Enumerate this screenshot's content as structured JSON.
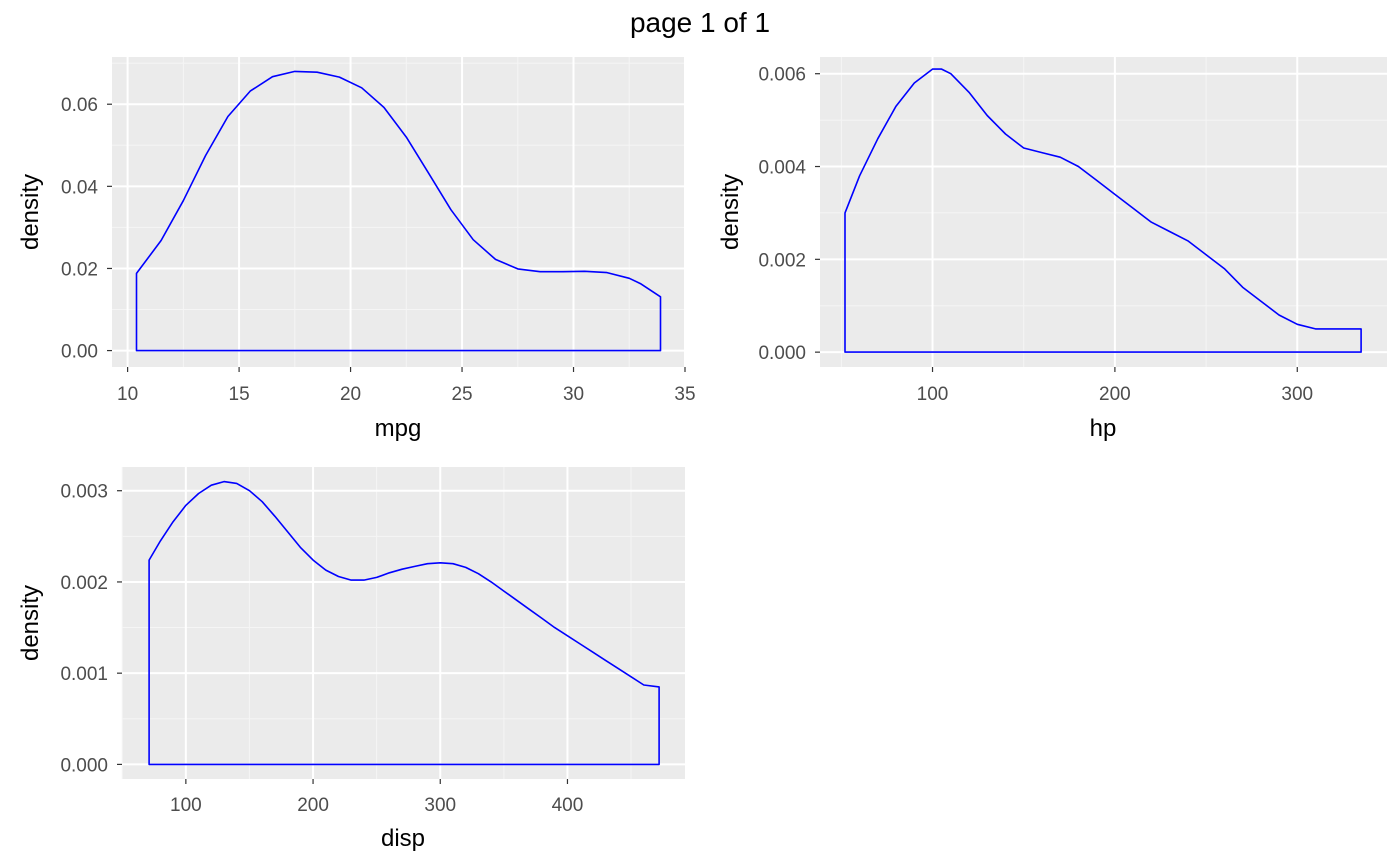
{
  "page": {
    "title": "page 1 of 1"
  },
  "colors": {
    "panel_background": "#ebebeb",
    "grid_major": "#ffffff",
    "grid_minor": "#f5f5f5",
    "tick_text": "#4d4d4d",
    "density_line": "#0000ff"
  },
  "chart_data": [
    {
      "type": "area",
      "title": "",
      "xlabel": "mpg",
      "ylabel": "density",
      "xlim": [
        9.3,
        35.0
      ],
      "ylim": [
        -0.004,
        0.0715
      ],
      "x_ticks": [
        10,
        15,
        20,
        25,
        30,
        35
      ],
      "x_tick_labels": [
        "10",
        "15",
        "20",
        "25",
        "30",
        "35"
      ],
      "y_ticks": [
        0.0,
        0.02,
        0.04,
        0.06
      ],
      "y_tick_labels": [
        "0.00",
        "0.02",
        "0.04",
        "0.06"
      ],
      "grid": true,
      "outline_color": "#0000ff",
      "fill": "none",
      "series": [
        {
          "x": [
            10.4,
            11.5,
            12.5,
            13.5,
            14.5,
            15.5,
            16.5,
            17.5,
            18.5,
            19.5,
            20.5,
            21.5,
            22.5,
            23.5,
            24.5,
            25.5,
            26.5,
            27.5,
            28.5,
            29.5,
            30.5,
            31.5,
            32.5,
            33.0,
            33.9
          ],
          "y": [
            0.0188,
            0.0268,
            0.0365,
            0.0475,
            0.057,
            0.0632,
            0.0667,
            0.068,
            0.0678,
            0.0666,
            0.064,
            0.0592,
            0.052,
            0.0432,
            0.0343,
            0.027,
            0.0222,
            0.0199,
            0.0192,
            0.0192,
            0.0193,
            0.019,
            0.0176,
            0.0163,
            0.0131
          ]
        }
      ]
    },
    {
      "type": "area",
      "title": "",
      "xlabel": "hp",
      "ylabel": "density",
      "xlim": [
        38.3,
        349.2
      ],
      "ylim": [
        -0.00032,
        0.00636
      ],
      "x_ticks": [
        100,
        200,
        300
      ],
      "x_tick_labels": [
        "100",
        "200",
        "300"
      ],
      "y_ticks": [
        0.0,
        0.002,
        0.004,
        0.006
      ],
      "y_tick_labels": [
        "0.000",
        "0.002",
        "0.004",
        "0.006"
      ],
      "grid": true,
      "outline_color": "#0000ff",
      "fill": "none",
      "series": [
        {
          "x": [
            52,
            60,
            70,
            80,
            90,
            100,
            105,
            110,
            120,
            130,
            140,
            150,
            160,
            170,
            180,
            190,
            200,
            210,
            220,
            230,
            240,
            250,
            260,
            270,
            280,
            290,
            300,
            310,
            320,
            335
          ],
          "y": [
            0.003,
            0.0038,
            0.0046,
            0.0053,
            0.0058,
            0.0061,
            0.0061,
            0.006,
            0.0056,
            0.0051,
            0.0047,
            0.0044,
            0.0043,
            0.0042,
            0.004,
            0.0037,
            0.0034,
            0.0031,
            0.0028,
            0.0026,
            0.0024,
            0.0021,
            0.0018,
            0.0014,
            0.0011,
            0.0008,
            0.0006,
            0.0005,
            0.0005,
            0.0005
          ]
        }
      ]
    },
    {
      "type": "area",
      "title": "",
      "xlabel": "disp",
      "ylabel": "density",
      "xlim": [
        49.8,
        492.4
      ],
      "ylim": [
        -0.00016,
        0.00326
      ],
      "x_ticks": [
        100,
        200,
        300,
        400
      ],
      "x_tick_labels": [
        "100",
        "200",
        "300",
        "400"
      ],
      "y_ticks": [
        0.0,
        0.001,
        0.002,
        0.003
      ],
      "y_tick_labels": [
        "0.000",
        "0.001",
        "0.002",
        "0.003"
      ],
      "grid": true,
      "outline_color": "#0000ff",
      "fill": "none",
      "series": [
        {
          "x": [
            71.1,
            80,
            90,
            100,
            110,
            120,
            130,
            140,
            150,
            160,
            170,
            180,
            190,
            200,
            210,
            220,
            230,
            240,
            250,
            260,
            270,
            280,
            290,
            300,
            310,
            320,
            330,
            340,
            350,
            360,
            370,
            380,
            390,
            400,
            410,
            420,
            430,
            440,
            450,
            460,
            472
          ],
          "y": [
            0.00224,
            0.00245,
            0.00266,
            0.00284,
            0.00297,
            0.00306,
            0.0031,
            0.00308,
            0.003,
            0.00288,
            0.00272,
            0.00255,
            0.00238,
            0.00224,
            0.00213,
            0.00206,
            0.00202,
            0.00202,
            0.00205,
            0.0021,
            0.00214,
            0.00217,
            0.0022,
            0.00221,
            0.0022,
            0.00216,
            0.00209,
            0.002,
            0.0019,
            0.0018,
            0.0017,
            0.0016,
            0.0015,
            0.00141,
            0.00132,
            0.00123,
            0.00114,
            0.00105,
            0.00096,
            0.00087,
            0.00085
          ]
        }
      ]
    }
  ]
}
